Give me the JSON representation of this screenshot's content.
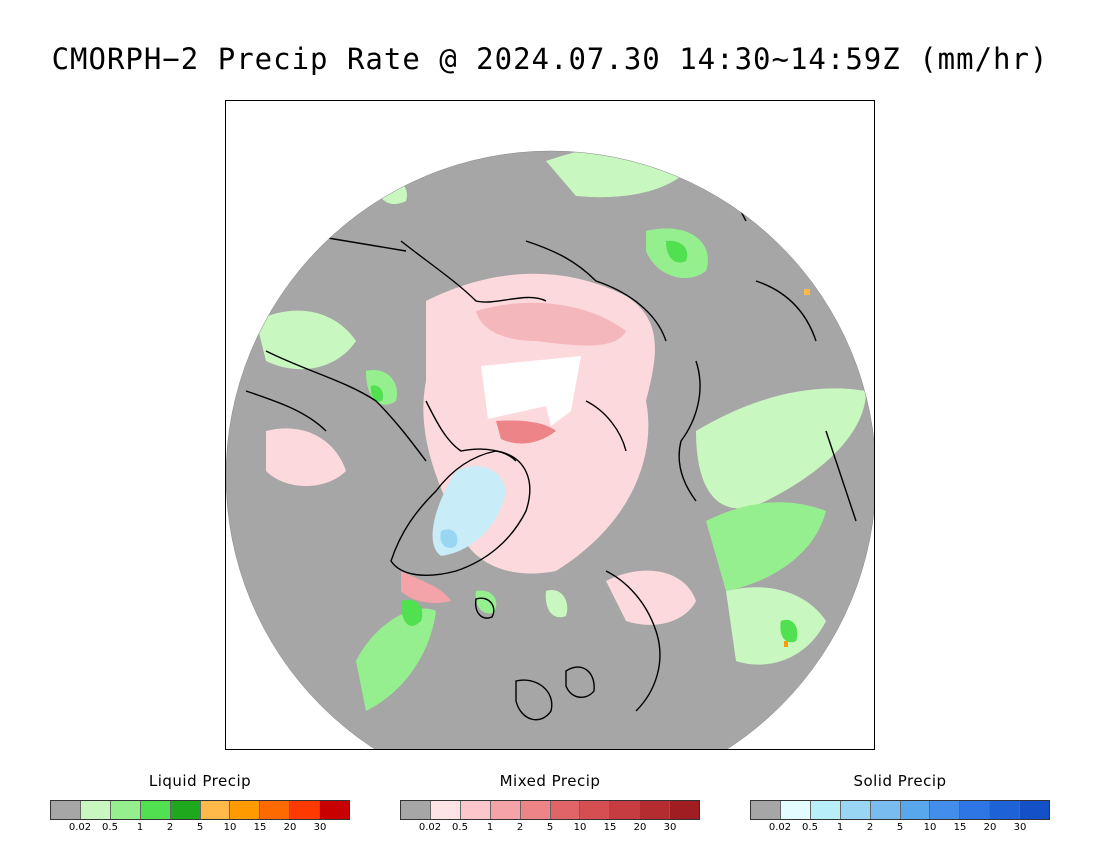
{
  "header": {
    "title": "CMORPH−2 Precip Rate @ 2024.07.30 14:30~14:59Z (mm/hr)"
  },
  "map": {
    "projection": "north polar stereographic",
    "colors": {
      "no_precip": "#a6a6a6",
      "outside": "#ffffff",
      "coastline": "#000000",
      "no_data_pole": "#ffffff"
    }
  },
  "legends": [
    {
      "id": "liquid",
      "title": "Liquid Precip",
      "colors": [
        "#a6a6a6",
        "#c8f7c0",
        "#96ef8e",
        "#50e050",
        "#1ea81e",
        "#ffb84a",
        "#ff9a00",
        "#ff6a00",
        "#ff3a00",
        "#c80000"
      ],
      "ticks": [
        "0.02",
        "0.5",
        "1",
        "2",
        "5",
        "10",
        "15",
        "20",
        "30"
      ]
    },
    {
      "id": "mixed",
      "title": "Mixed Precip",
      "colors": [
        "#a6a6a6",
        "#ffe4e6",
        "#fcc6ca",
        "#f4a4a8",
        "#ec8488",
        "#e06468",
        "#d44e52",
        "#c63c40",
        "#b42c30",
        "#a01e22"
      ],
      "ticks": [
        "0.02",
        "0.5",
        "1",
        "2",
        "5",
        "10",
        "15",
        "20",
        "30"
      ]
    },
    {
      "id": "solid",
      "title": "Solid Precip",
      "colors": [
        "#a6a6a6",
        "#e2fcff",
        "#b8eef8",
        "#98d6f4",
        "#78bcf0",
        "#58a6ec",
        "#428eea",
        "#2e76e6",
        "#1e62d8",
        "#1450c8"
      ],
      "ticks": [
        "0.02",
        "0.5",
        "1",
        "2",
        "5",
        "10",
        "15",
        "20",
        "30"
      ]
    }
  ]
}
